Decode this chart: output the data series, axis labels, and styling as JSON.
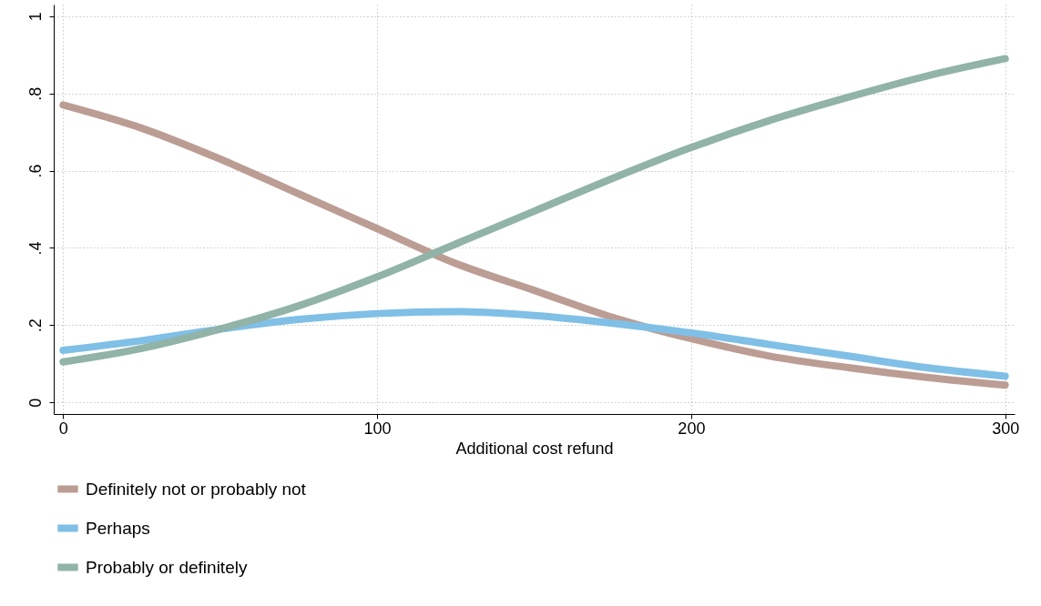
{
  "chart_data": {
    "type": "line",
    "xlabel": "Additional cost refund",
    "x": [
      0,
      25,
      50,
      75,
      100,
      125,
      150,
      175,
      200,
      225,
      250,
      275,
      300
    ],
    "series": [
      {
        "name": "Definitely not or probably not",
        "color": "#bb9d94",
        "values": [
          0.77,
          0.71,
          0.63,
          0.54,
          0.45,
          0.36,
          0.29,
          0.22,
          0.165,
          0.12,
          0.09,
          0.065,
          0.045
        ]
      },
      {
        "name": "Perhaps",
        "color": "#80bfe6",
        "values": [
          0.135,
          0.16,
          0.19,
          0.215,
          0.23,
          0.235,
          0.225,
          0.205,
          0.18,
          0.15,
          0.12,
          0.09,
          0.068
        ]
      },
      {
        "name": "Probably or definitely",
        "color": "#91b3a8",
        "values": [
          0.105,
          0.14,
          0.19,
          0.25,
          0.325,
          0.41,
          0.495,
          0.58,
          0.66,
          0.73,
          0.79,
          0.845,
          0.89
        ]
      }
    ],
    "xlim": [
      -3,
      303
    ],
    "xticks": [
      0,
      100,
      200,
      300
    ],
    "ylim": [
      -0.03,
      1.03
    ],
    "yticks": [
      0,
      {
        "value": 0.2,
        "label": ".2"
      },
      {
        "value": 0.4,
        "label": ".4"
      },
      {
        "value": 0.6,
        "label": ".6"
      },
      {
        "value": 0.8,
        "label": ".8"
      },
      1
    ],
    "grid": true,
    "legend": "bottom",
    "marker": "none",
    "line_style": "solid"
  }
}
